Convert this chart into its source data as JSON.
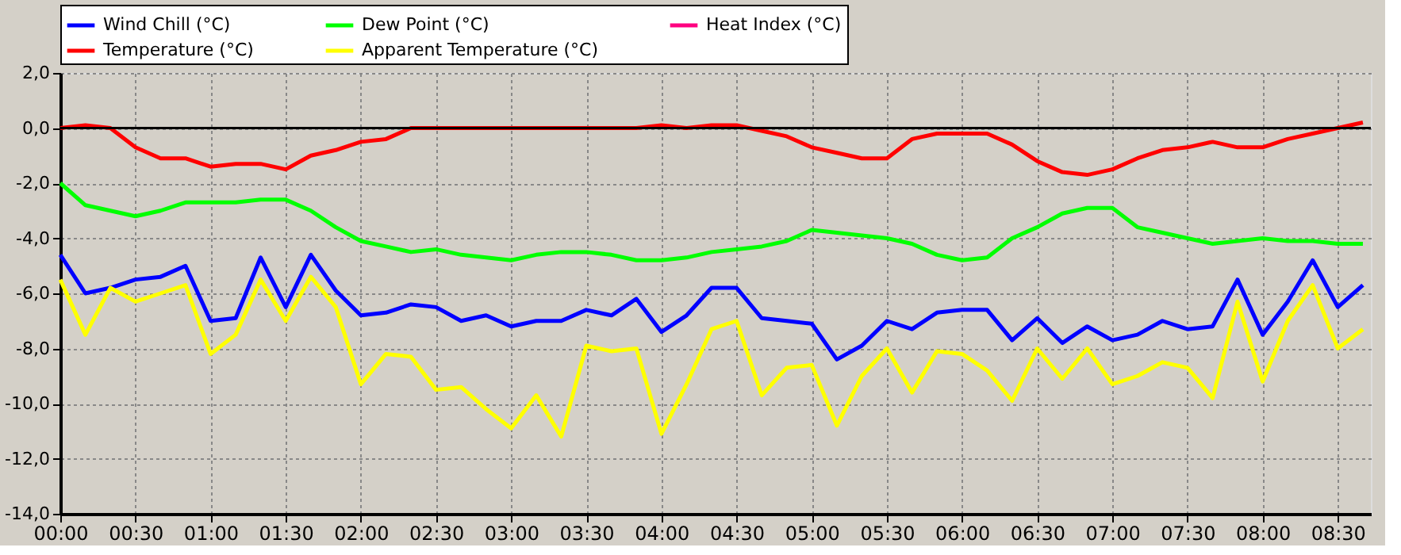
{
  "chart_data": {
    "type": "line",
    "x": [
      0,
      0.167,
      0.333,
      0.5,
      0.667,
      0.833,
      1,
      1.167,
      1.333,
      1.5,
      1.667,
      1.833,
      2,
      2.167,
      2.333,
      2.5,
      2.667,
      2.833,
      3,
      3.167,
      3.333,
      3.5,
      3.667,
      3.833,
      4,
      4.167,
      4.333,
      4.5,
      4.667,
      4.833,
      5,
      5.167,
      5.333,
      5.5,
      5.667,
      5.833,
      6,
      6.167,
      6.333,
      6.5,
      6.667,
      6.833,
      7,
      7.167,
      7.333,
      7.5,
      7.667,
      7.833,
      8,
      8.167,
      8.333,
      8.5,
      8.667
    ],
    "series": [
      {
        "name": "Wind Chill (°C)",
        "color": "#0000ff",
        "values": [
          -4.6,
          -6.0,
          -5.8,
          -5.5,
          -5.4,
          -5.0,
          -7.0,
          -6.9,
          -4.7,
          -6.5,
          -4.6,
          -5.9,
          -6.8,
          -6.7,
          -6.4,
          -6.5,
          -7.0,
          -6.8,
          -7.2,
          -7.0,
          -7.0,
          -6.6,
          -6.8,
          -6.2,
          -7.4,
          -6.8,
          -5.8,
          -5.8,
          -6.9,
          -7.0,
          -7.1,
          -8.4,
          -7.9,
          -7.0,
          -7.3,
          -6.7,
          -6.6,
          -6.6,
          -7.7,
          -6.9,
          -7.8,
          -7.2,
          -7.7,
          -7.5,
          -7.0,
          -7.3,
          -7.2,
          -5.5,
          -7.5,
          -6.3,
          -4.8,
          -6.5,
          -5.7
        ]
      },
      {
        "name": "Dew Point (°C)",
        "color": "#00ff00",
        "values": [
          -2.0,
          -2.8,
          -3.0,
          -3.2,
          -3.0,
          -2.7,
          -2.7,
          -2.7,
          -2.6,
          -2.6,
          -3.0,
          -3.6,
          -4.1,
          -4.3,
          -4.5,
          -4.4,
          -4.6,
          -4.7,
          -4.8,
          -4.6,
          -4.5,
          -4.5,
          -4.6,
          -4.8,
          -4.8,
          -4.7,
          -4.5,
          -4.4,
          -4.3,
          -4.1,
          -3.7,
          -3.8,
          -3.9,
          -4.0,
          -4.2,
          -4.6,
          -4.8,
          -4.7,
          -4.0,
          -3.6,
          -3.1,
          -2.9,
          -2.9,
          -3.6,
          -3.8,
          -4.0,
          -4.2,
          -4.1,
          -4.0,
          -4.1,
          -4.1,
          -4.2,
          -4.2
        ]
      },
      {
        "name": "Heat Index (°C)",
        "color": "#ff0080",
        "values": [
          null,
          null,
          null,
          null,
          null,
          null,
          null,
          null,
          null,
          null,
          null,
          null,
          null,
          null,
          null,
          null,
          null,
          null,
          null,
          null,
          null,
          null,
          null,
          null,
          null,
          null,
          null,
          null,
          null,
          null,
          null,
          null,
          null,
          null,
          null,
          null,
          null,
          null,
          null,
          null,
          null,
          null,
          null,
          null,
          null,
          null,
          null,
          null,
          null,
          null,
          null,
          null,
          null
        ]
      },
      {
        "name": "Temperature (°C)",
        "color": "#ff0000",
        "values": [
          0.0,
          0.1,
          0.0,
          -0.7,
          -1.1,
          -1.1,
          -1.4,
          -1.3,
          -1.3,
          -1.5,
          -1.0,
          -0.8,
          -0.5,
          -0.4,
          0.0,
          0.0,
          0.0,
          0.0,
          0.0,
          0.0,
          0.0,
          0.0,
          0.0,
          0.0,
          0.1,
          0.0,
          0.1,
          0.1,
          -0.1,
          -0.3,
          -0.7,
          -0.9,
          -1.1,
          -1.1,
          -0.4,
          -0.2,
          -0.2,
          -0.2,
          -0.6,
          -1.2,
          -1.6,
          -1.7,
          -1.5,
          -1.1,
          -0.8,
          -0.7,
          -0.5,
          -0.7,
          -0.7,
          -0.4,
          -0.2,
          0.0,
          0.2
        ]
      },
      {
        "name": "Apparent Temperature (°C)",
        "color": "#ffff00",
        "values": [
          -5.5,
          -7.5,
          -5.8,
          -6.3,
          -6.0,
          -5.7,
          -8.2,
          -7.5,
          -5.5,
          -7.0,
          -5.4,
          -6.5,
          -9.3,
          -8.2,
          -8.3,
          -9.5,
          -9.4,
          -10.2,
          -10.9,
          -9.7,
          -11.2,
          -7.9,
          -8.1,
          -8.0,
          -11.1,
          -9.3,
          -7.3,
          -7.0,
          -9.7,
          -8.7,
          -8.6,
          -10.8,
          -9.0,
          -8.0,
          -9.6,
          -8.1,
          -8.2,
          -8.8,
          -9.9,
          -8.0,
          -9.1,
          -8.0,
          -9.3,
          -9.0,
          -8.5,
          -8.7,
          -9.8,
          -6.3,
          -9.2,
          -7.0,
          -5.7,
          -8.0,
          -7.3
        ]
      }
    ],
    "xlim": [
      0,
      8.72
    ],
    "xticks": [
      {
        "value": 0,
        "label": "00:00"
      },
      {
        "value": 0.5,
        "label": "00:30"
      },
      {
        "value": 1,
        "label": "01:00"
      },
      {
        "value": 1.5,
        "label": "01:30"
      },
      {
        "value": 2,
        "label": "02:00"
      },
      {
        "value": 2.5,
        "label": "02:30"
      },
      {
        "value": 3,
        "label": "03:00"
      },
      {
        "value": 3.5,
        "label": "03:30"
      },
      {
        "value": 4,
        "label": "04:00"
      },
      {
        "value": 4.5,
        "label": "04:30"
      },
      {
        "value": 5,
        "label": "05:00"
      },
      {
        "value": 5.5,
        "label": "05:30"
      },
      {
        "value": 6,
        "label": "06:00"
      },
      {
        "value": 6.5,
        "label": "06:30"
      },
      {
        "value": 7,
        "label": "07:00"
      },
      {
        "value": 7.5,
        "label": "07:30"
      },
      {
        "value": 8,
        "label": "08:00"
      },
      {
        "value": 8.5,
        "label": "08:30"
      }
    ],
    "ylim": [
      -14,
      2
    ],
    "yticks": [
      {
        "value": -14,
        "label": "-14,0"
      },
      {
        "value": -12,
        "label": "-12,0"
      },
      {
        "value": -10,
        "label": "-10,0"
      },
      {
        "value": -8,
        "label": "-8,0"
      },
      {
        "value": -6,
        "label": "-6,0"
      },
      {
        "value": -4,
        "label": "-4,0"
      },
      {
        "value": -2,
        "label": "-2,0"
      },
      {
        "value": 0,
        "label": "0,0"
      },
      {
        "value": 2,
        "label": "2,0"
      }
    ],
    "ref_lines": [
      {
        "axis": "y",
        "value": 0,
        "color": "#000000"
      }
    ],
    "grid": true,
    "legend": "top",
    "marker": "none",
    "line_style": "solid"
  }
}
